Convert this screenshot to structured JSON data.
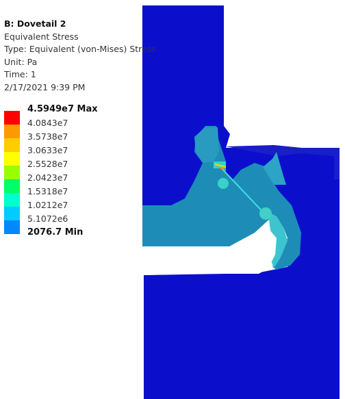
{
  "result": {
    "title": "B: Dovetail 2",
    "subtitle": "Equivalent Stress",
    "type": "Type: Equivalent (von-Mises) Stress",
    "unit": "Unit: Pa",
    "time": "Time: 1",
    "date": "2/17/2021 9:39 PM"
  },
  "legend": {
    "levels": [
      {
        "label": "4.5949e7 Max",
        "color": "#ff0000"
      },
      {
        "label": "4.0843e7",
        "color": "#ff9900"
      },
      {
        "label": "3.5738e7",
        "color": "#ffcc00"
      },
      {
        "label": "3.0633e7",
        "color": "#ffff00"
      },
      {
        "label": "2.5528e7",
        "color": "#99ff00"
      },
      {
        "label": "2.0423e7",
        "color": "#00ff66"
      },
      {
        "label": "1.5318e7",
        "color": "#00ffcc"
      },
      {
        "label": "1.0212e7",
        "color": "#00ccff"
      },
      {
        "label": "5.1072e6",
        "color": "#0088ff"
      },
      {
        "label": "2076.7 Min",
        "color": "#0000cc"
      }
    ]
  },
  "colors": {
    "low": "#0a0acc",
    "mid": "#1c8fb8",
    "high": "#5ad8d2",
    "hot": "#ffd400"
  }
}
